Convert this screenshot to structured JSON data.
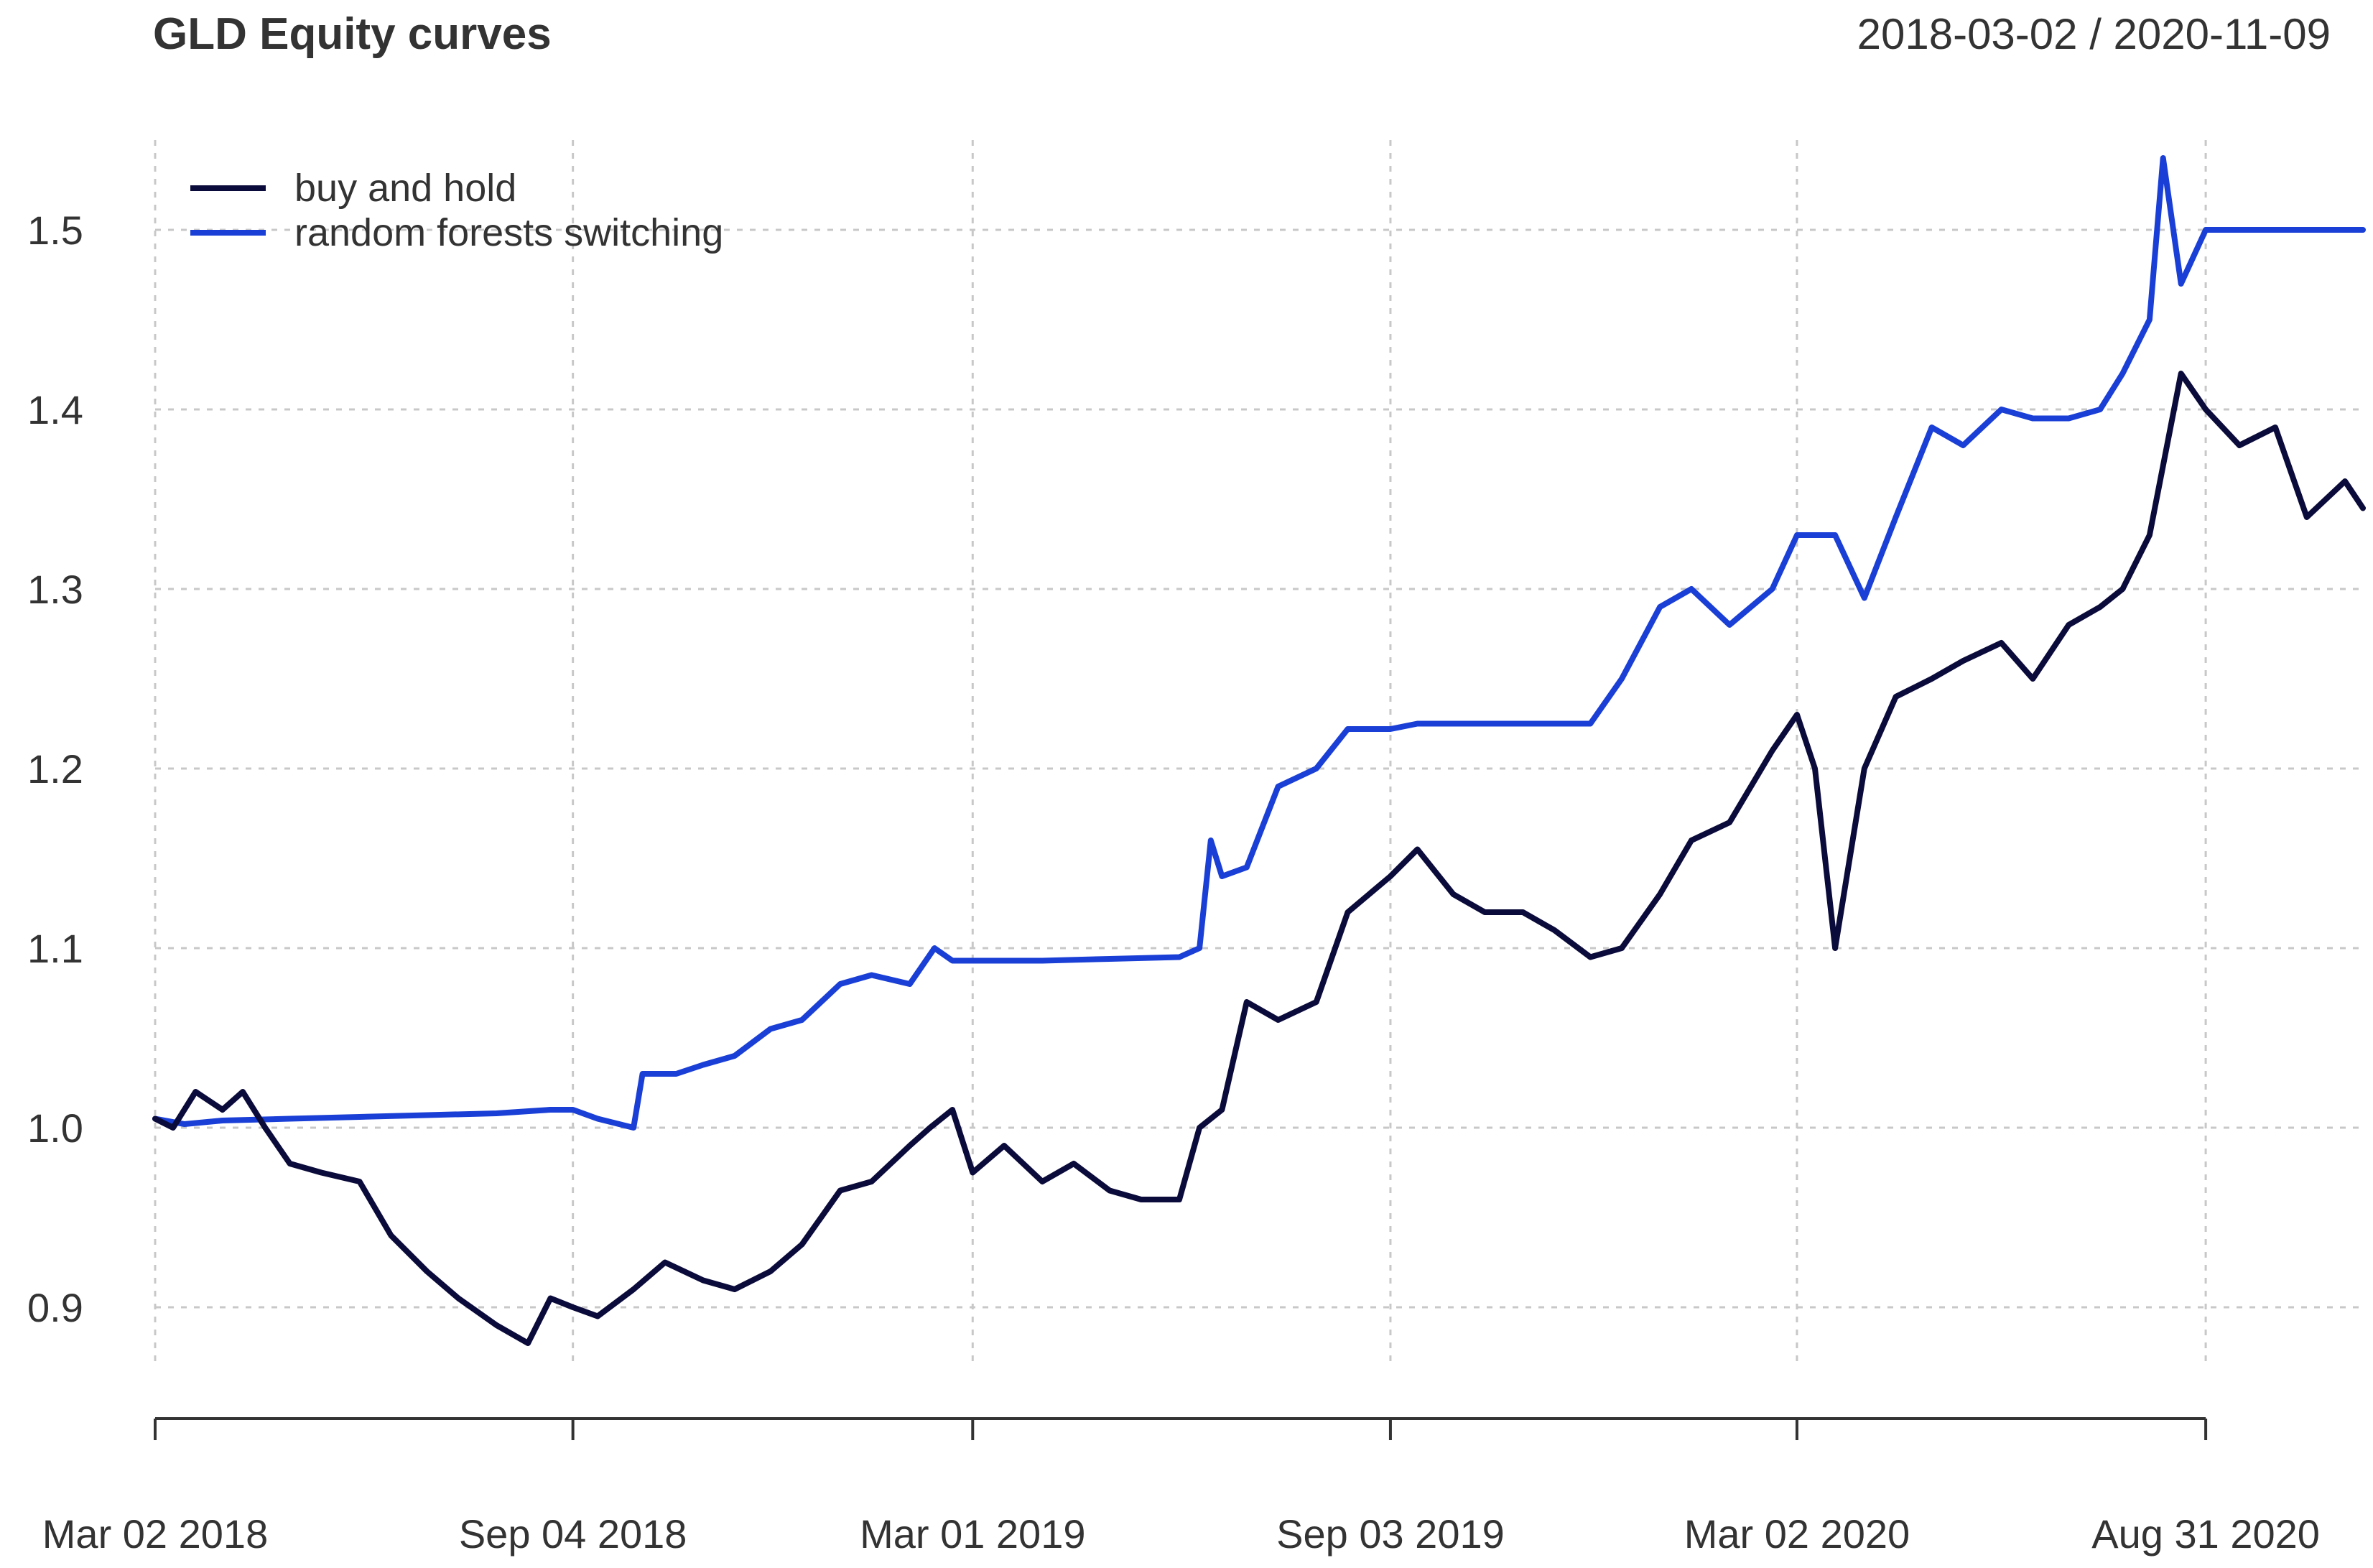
{
  "chart_data": {
    "type": "line",
    "title": "GLD Equity curves",
    "date_range": "2018-03-02 / 2020-11-09",
    "xlabel": "",
    "ylabel": "",
    "x_tick_labels": [
      "Mar 02 2018",
      "Sep 04 2018",
      "Mar 01 2019",
      "Sep 03 2019",
      "Mar 02 2020",
      "Aug 31 2020"
    ],
    "y_tick_labels": [
      "0.9",
      "1.0",
      "1.1",
      "1.2",
      "1.3",
      "1.4",
      "1.5"
    ],
    "xlim": [
      "2018-03-02",
      "2020-11-09"
    ],
    "ylim": [
      0.87,
      1.55
    ],
    "grid": true,
    "legend_position": "top-left",
    "series": [
      {
        "name": "buy and hold",
        "color": "#0b0b3b",
        "x": [
          "2018-03-02",
          "2018-03-10",
          "2018-03-20",
          "2018-04-01",
          "2018-04-10",
          "2018-04-20",
          "2018-05-01",
          "2018-05-15",
          "2018-06-01",
          "2018-06-15",
          "2018-07-01",
          "2018-07-15",
          "2018-08-01",
          "2018-08-15",
          "2018-08-25",
          "2018-09-04",
          "2018-09-15",
          "2018-10-01",
          "2018-10-15",
          "2018-11-01",
          "2018-11-15",
          "2018-12-01",
          "2018-12-15",
          "2019-01-01",
          "2019-01-15",
          "2019-02-01",
          "2019-02-10",
          "2019-02-20",
          "2019-03-01",
          "2019-03-15",
          "2019-04-01",
          "2019-04-15",
          "2019-05-01",
          "2019-05-15",
          "2019-06-01",
          "2019-06-10",
          "2019-06-20",
          "2019-07-01",
          "2019-07-15",
          "2019-08-01",
          "2019-08-15",
          "2019-09-03",
          "2019-09-15",
          "2019-10-01",
          "2019-10-15",
          "2019-11-01",
          "2019-11-15",
          "2019-12-01",
          "2019-12-15",
          "2020-01-01",
          "2020-01-15",
          "2020-02-01",
          "2020-02-20",
          "2020-03-02",
          "2020-03-10",
          "2020-03-19",
          "2020-04-01",
          "2020-04-15",
          "2020-05-01",
          "2020-05-15",
          "2020-06-01",
          "2020-06-15",
          "2020-07-01",
          "2020-07-15",
          "2020-07-25",
          "2020-08-06",
          "2020-08-20",
          "2020-08-31",
          "2020-09-15",
          "2020-10-01",
          "2020-10-15",
          "2020-11-01",
          "2020-11-09"
        ],
        "values": [
          1.005,
          1.0,
          1.02,
          1.01,
          1.02,
          1.0,
          0.98,
          0.975,
          0.97,
          0.94,
          0.92,
          0.905,
          0.89,
          0.88,
          0.905,
          0.9,
          0.895,
          0.91,
          0.925,
          0.915,
          0.91,
          0.92,
          0.935,
          0.965,
          0.97,
          0.99,
          1.0,
          1.01,
          0.975,
          0.99,
          0.97,
          0.98,
          0.965,
          0.96,
          0.96,
          1.0,
          1.01,
          1.07,
          1.06,
          1.07,
          1.12,
          1.14,
          1.155,
          1.13,
          1.12,
          1.12,
          1.11,
          1.095,
          1.1,
          1.13,
          1.16,
          1.17,
          1.21,
          1.23,
          1.2,
          1.1,
          1.2,
          1.24,
          1.25,
          1.26,
          1.27,
          1.25,
          1.28,
          1.29,
          1.3,
          1.33,
          1.42,
          1.4,
          1.38,
          1.39,
          1.34,
          1.36,
          1.345
        ]
      },
      {
        "name": "random forests switching",
        "color": "#1a3fd6",
        "x": [
          "2018-03-02",
          "2018-03-15",
          "2018-04-01",
          "2018-05-01",
          "2018-06-01",
          "2018-07-01",
          "2018-08-01",
          "2018-08-25",
          "2018-09-04",
          "2018-09-15",
          "2018-10-01",
          "2018-10-05",
          "2018-10-20",
          "2018-11-01",
          "2018-11-15",
          "2018-12-01",
          "2018-12-15",
          "2019-01-01",
          "2019-01-15",
          "2019-02-01",
          "2019-02-12",
          "2019-02-20",
          "2019-03-01",
          "2019-04-01",
          "2019-05-01",
          "2019-06-01",
          "2019-06-10",
          "2019-06-15",
          "2019-06-20",
          "2019-07-01",
          "2019-07-15",
          "2019-08-01",
          "2019-08-15",
          "2019-09-03",
          "2019-09-15",
          "2019-10-01",
          "2019-11-01",
          "2019-12-01",
          "2019-12-15",
          "2020-01-01",
          "2020-01-15",
          "2020-02-01",
          "2020-02-20",
          "2020-03-02",
          "2020-03-09",
          "2020-03-19",
          "2020-04-01",
          "2020-04-15",
          "2020-05-01",
          "2020-05-15",
          "2020-06-01",
          "2020-06-15",
          "2020-07-01",
          "2020-07-15",
          "2020-07-25",
          "2020-08-06",
          "2020-08-12",
          "2020-08-20",
          "2020-08-31",
          "2020-09-15",
          "2020-10-15",
          "2020-11-09"
        ],
        "values": [
          1.005,
          1.002,
          1.004,
          1.005,
          1.006,
          1.007,
          1.008,
          1.01,
          1.01,
          1.005,
          1.0,
          1.03,
          1.03,
          1.035,
          1.04,
          1.055,
          1.06,
          1.08,
          1.085,
          1.08,
          1.1,
          1.093,
          1.093,
          1.093,
          1.094,
          1.095,
          1.1,
          1.16,
          1.14,
          1.145,
          1.19,
          1.2,
          1.222,
          1.222,
          1.225,
          1.225,
          1.225,
          1.225,
          1.25,
          1.29,
          1.3,
          1.28,
          1.3,
          1.33,
          1.33,
          1.33,
          1.295,
          1.34,
          1.39,
          1.38,
          1.4,
          1.395,
          1.395,
          1.4,
          1.42,
          1.45,
          1.54,
          1.47,
          1.5,
          1.5,
          1.5,
          1.5
        ]
      }
    ]
  }
}
